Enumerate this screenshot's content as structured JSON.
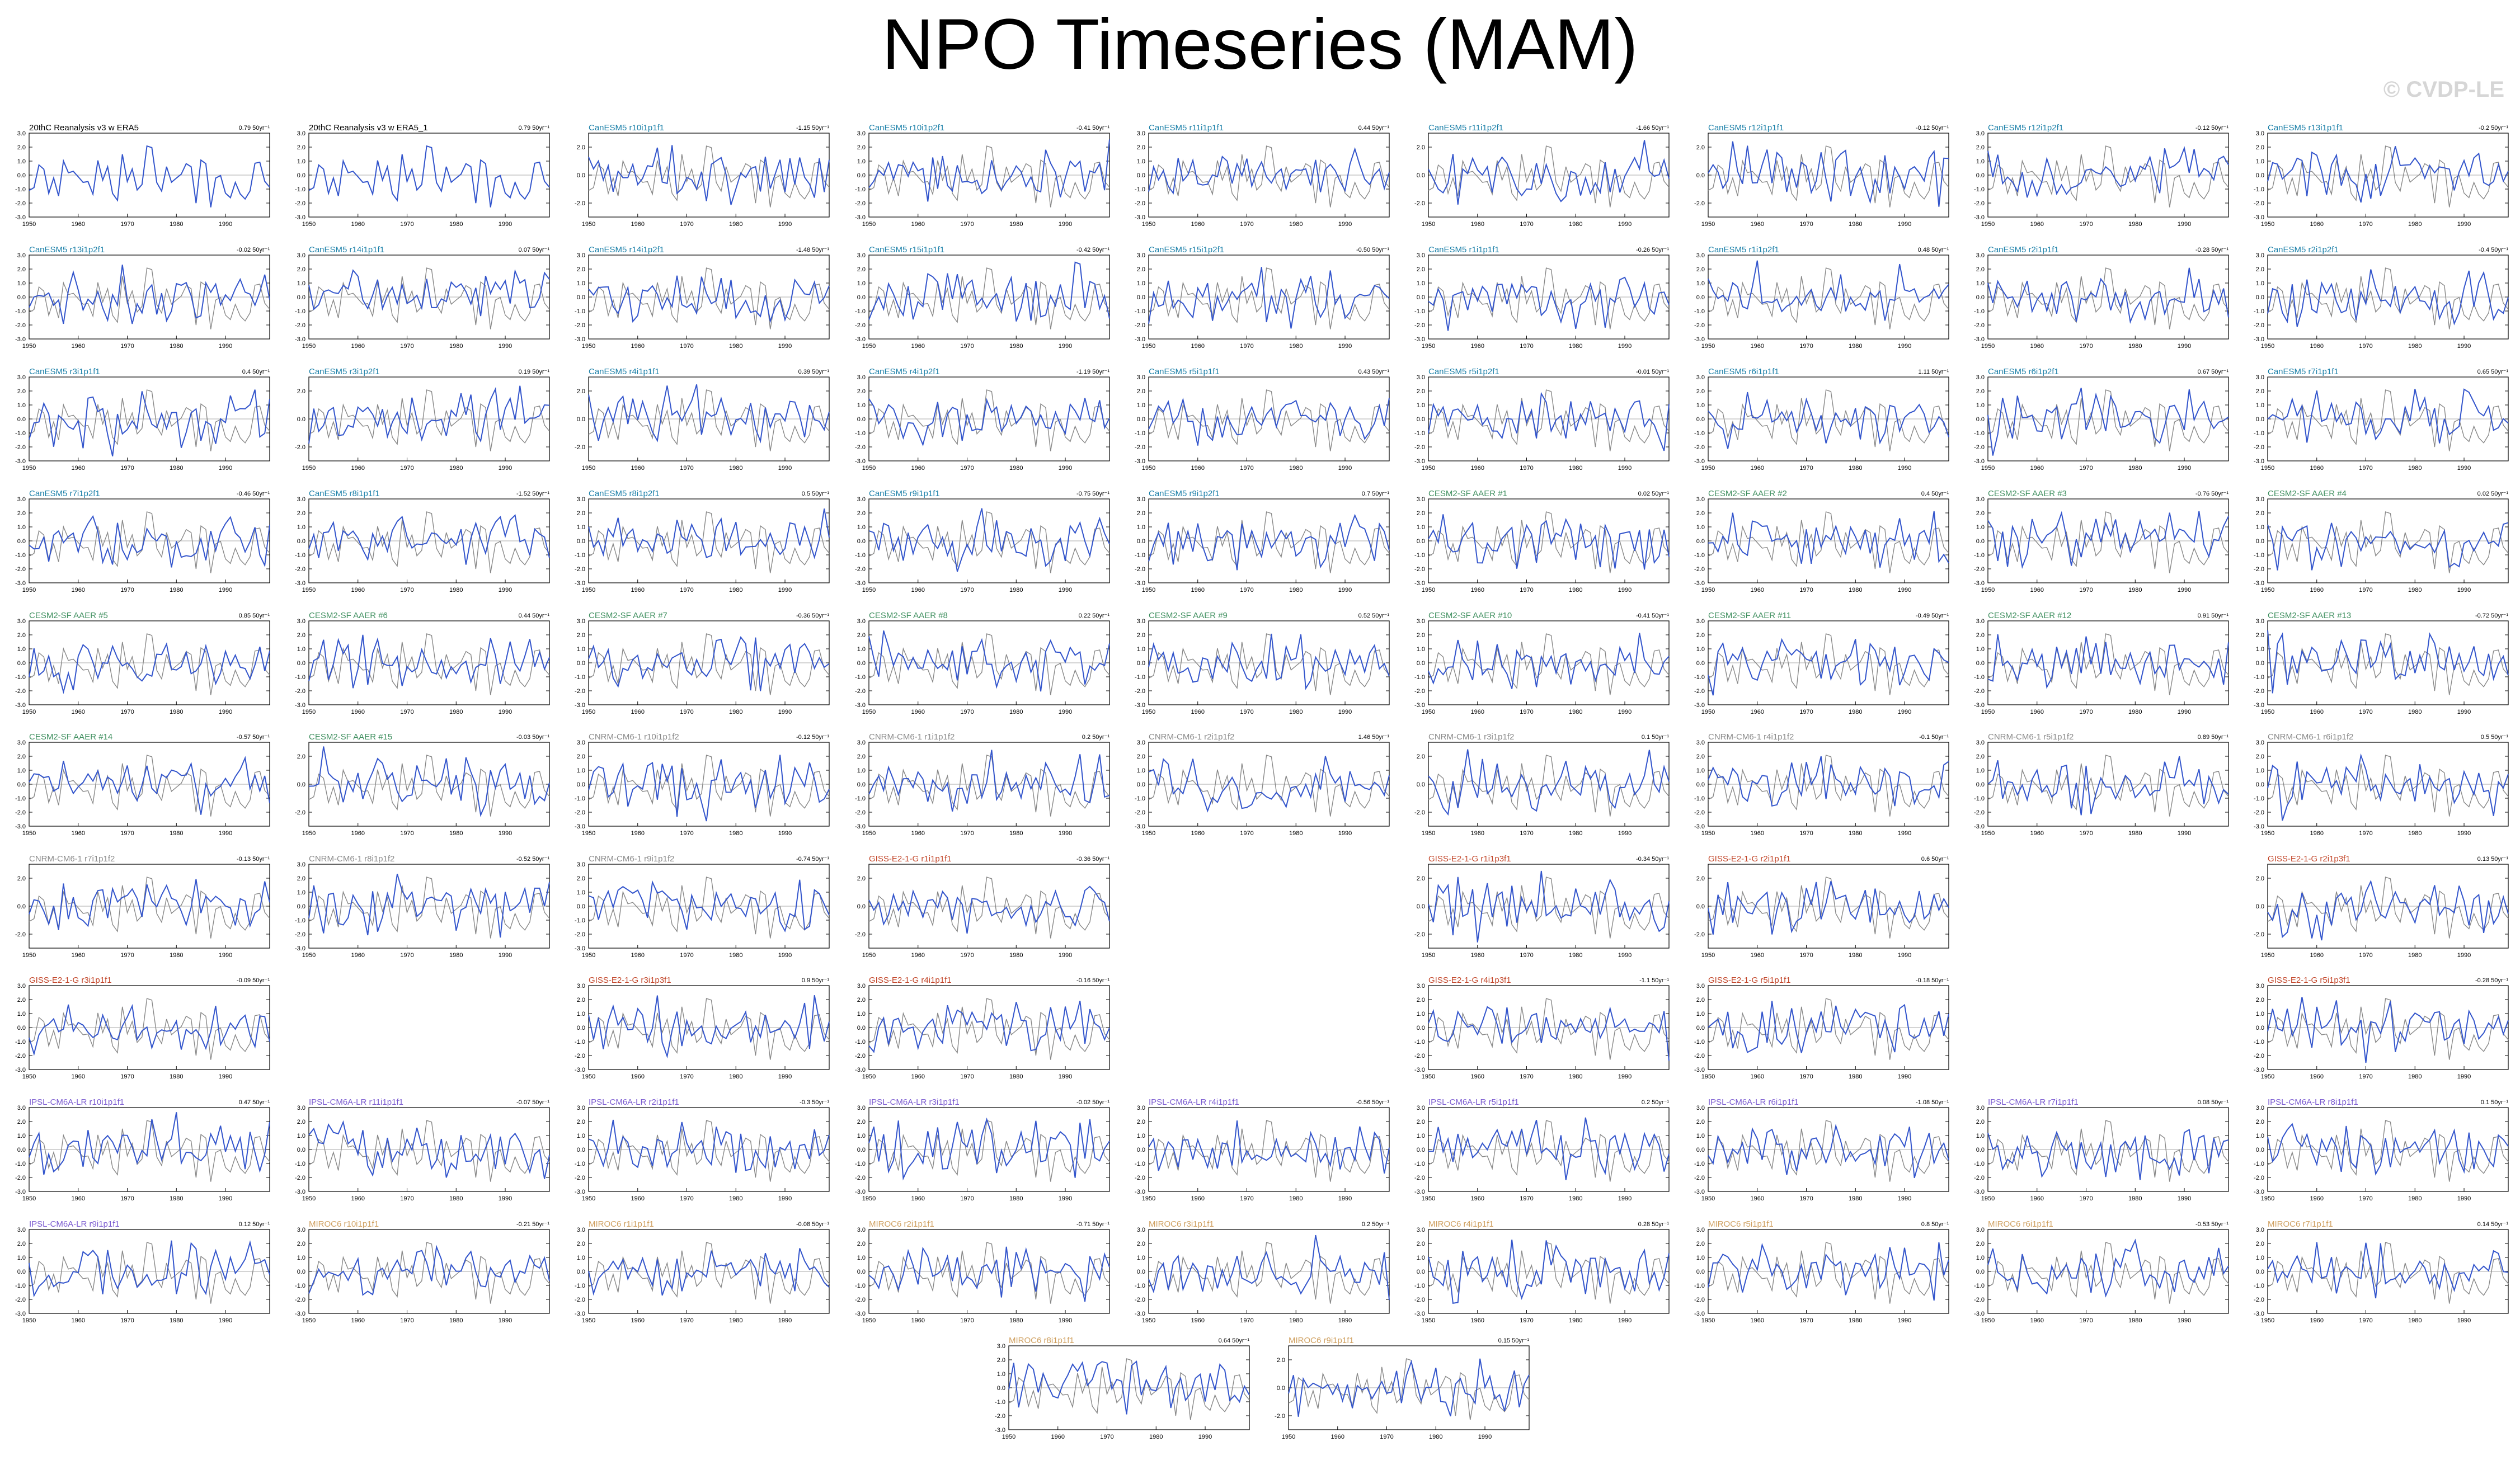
{
  "title": "NPO Timeseries (MAM)",
  "watermark": "© CVDP-LE",
  "colors": {
    "ensemble_line": "#3355cc",
    "observed_line": "#888888",
    "zero_line": "#aaaaaa",
    "obs_title": "#000000",
    "CanESM5": "#1a7fa8",
    "CESM2-SF AAER": "#3f8f5f",
    "CNRM-CM6-1": "#8a8a8a",
    "GISS-E2-1-G": "#c2462a",
    "IPSL-CM6A-LR": "#7a5ad0",
    "MIROC6": "#cfa060"
  },
  "chart_data": {
    "type": "line",
    "x_range": [
      1950,
      1999
    ],
    "x_ticks": [
      1950,
      1960,
      1970,
      1980,
      1990
    ],
    "ylim": [
      -3.0,
      3.0
    ],
    "y_ticks_full": [
      "3.0",
      "2.0",
      "1.0",
      "0.0",
      "-1.0",
      "-2.0",
      "-3.0"
    ],
    "y_ticks_short": [
      "2.0",
      "0.0",
      "-2.0"
    ],
    "grid": false,
    "panels": [
      {
        "row": 0,
        "col": 0,
        "title": "20thC Reanalysis v3 w ERA5",
        "stat": "0.79 50yr⁻¹",
        "group": "obs",
        "yt": "full",
        "seed": 101
      },
      {
        "row": 0,
        "col": 1,
        "title": "20thC Reanalysis v3 w ERA5_1",
        "stat": "0.79 50yr⁻¹",
        "group": "obs",
        "yt": "full",
        "seed": 102
      },
      {
        "row": 0,
        "col": 2,
        "title": "CanESM5 r10i1p1f1",
        "stat": "-1.15 50yr⁻¹",
        "group": "CanESM5",
        "yt": "short",
        "seed": 103
      },
      {
        "row": 0,
        "col": 3,
        "title": "CanESM5 r10i1p2f1",
        "stat": "-0.41 50yr⁻¹",
        "group": "CanESM5",
        "yt": "full",
        "seed": 104
      },
      {
        "row": 0,
        "col": 4,
        "title": "CanESM5 r11i1p1f1",
        "stat": "0.44 50yr⁻¹",
        "group": "CanESM5",
        "yt": "full",
        "seed": 105
      },
      {
        "row": 0,
        "col": 5,
        "title": "CanESM5 r11i1p2f1",
        "stat": "-1.66 50yr⁻¹",
        "group": "CanESM5",
        "yt": "short",
        "seed": 106
      },
      {
        "row": 0,
        "col": 6,
        "title": "CanESM5 r12i1p1f1",
        "stat": "-0.12 50yr⁻¹",
        "group": "CanESM5",
        "yt": "short",
        "seed": 107
      },
      {
        "row": 0,
        "col": 7,
        "title": "CanESM5 r12i1p2f1",
        "stat": "-0.12 50yr⁻¹",
        "group": "CanESM5",
        "yt": "full",
        "seed": 108
      },
      {
        "row": 0,
        "col": 8,
        "title": "CanESM5 r13i1p1f1",
        "stat": "-0.2 50yr⁻¹",
        "group": "CanESM5",
        "yt": "full",
        "seed": 109
      },
      {
        "row": 1,
        "col": 0,
        "title": "CanESM5 r13i1p2f1",
        "stat": "-0.02 50yr⁻¹",
        "group": "CanESM5",
        "yt": "full",
        "seed": 110
      },
      {
        "row": 1,
        "col": 1,
        "title": "CanESM5 r14i1p1f1",
        "stat": "0.07 50yr⁻¹",
        "group": "CanESM5",
        "yt": "full",
        "seed": 111
      },
      {
        "row": 1,
        "col": 2,
        "title": "CanESM5 r14i1p2f1",
        "stat": "-1.48 50yr⁻¹",
        "group": "CanESM5",
        "yt": "full",
        "seed": 112
      },
      {
        "row": 1,
        "col": 3,
        "title": "CanESM5 r15i1p1f1",
        "stat": "-0.42 50yr⁻¹",
        "group": "CanESM5",
        "yt": "full",
        "seed": 113
      },
      {
        "row": 1,
        "col": 4,
        "title": "CanESM5 r15i1p2f1",
        "stat": "-0.50 50yr⁻¹",
        "group": "CanESM5",
        "yt": "full",
        "seed": 114
      },
      {
        "row": 1,
        "col": 5,
        "title": "CanESM5 r1i1p1f1",
        "stat": "-0.26 50yr⁻¹",
        "group": "CanESM5",
        "yt": "full",
        "seed": 115
      },
      {
        "row": 1,
        "col": 6,
        "title": "CanESM5 r1i1p2f1",
        "stat": "0.48 50yr⁻¹",
        "group": "CanESM5",
        "yt": "full",
        "seed": 116
      },
      {
        "row": 1,
        "col": 7,
        "title": "CanESM5 r2i1p1f1",
        "stat": "-0.28 50yr⁻¹",
        "group": "CanESM5",
        "yt": "full",
        "seed": 117
      },
      {
        "row": 1,
        "col": 8,
        "title": "CanESM5 r2i1p2f1",
        "stat": "-0.4 50yr⁻¹",
        "group": "CanESM5",
        "yt": "full",
        "seed": 118
      },
      {
        "row": 2,
        "col": 0,
        "title": "CanESM5 r3i1p1f1",
        "stat": "0.4 50yr⁻¹",
        "group": "CanESM5",
        "yt": "full",
        "seed": 119
      },
      {
        "row": 2,
        "col": 1,
        "title": "CanESM5 r3i1p2f1",
        "stat": "0.19 50yr⁻¹",
        "group": "CanESM5",
        "yt": "short",
        "seed": 120
      },
      {
        "row": 2,
        "col": 2,
        "title": "CanESM5 r4i1p1f1",
        "stat": "0.39 50yr⁻¹",
        "group": "CanESM5",
        "yt": "short",
        "seed": 121
      },
      {
        "row": 2,
        "col": 3,
        "title": "CanESM5 r4i1p2f1",
        "stat": "-1.19 50yr⁻¹",
        "group": "CanESM5",
        "yt": "full",
        "seed": 122
      },
      {
        "row": 2,
        "col": 4,
        "title": "CanESM5 r5i1p1f1",
        "stat": "0.43 50yr⁻¹",
        "group": "CanESM5",
        "yt": "full",
        "seed": 123
      },
      {
        "row": 2,
        "col": 5,
        "title": "CanESM5 r5i1p2f1",
        "stat": "-0.01 50yr⁻¹",
        "group": "CanESM5",
        "yt": "full",
        "seed": 124
      },
      {
        "row": 2,
        "col": 6,
        "title": "CanESM5 r6i1p1f1",
        "stat": "1.11 50yr⁻¹",
        "group": "CanESM5",
        "yt": "full",
        "seed": 125
      },
      {
        "row": 2,
        "col": 7,
        "title": "CanESM5 r6i1p2f1",
        "stat": "0.67 50yr⁻¹",
        "group": "CanESM5",
        "yt": "full",
        "seed": 126
      },
      {
        "row": 2,
        "col": 8,
        "title": "CanESM5 r7i1p1f1",
        "stat": "0.65 50yr⁻¹",
        "group": "CanESM5",
        "yt": "full",
        "seed": 127
      },
      {
        "row": 3,
        "col": 0,
        "title": "CanESM5 r7i1p2f1",
        "stat": "-0.46 50yr⁻¹",
        "group": "CanESM5",
        "yt": "full",
        "seed": 128
      },
      {
        "row": 3,
        "col": 1,
        "title": "CanESM5 r8i1p1f1",
        "stat": "-1.52 50yr⁻¹",
        "group": "CanESM5",
        "yt": "full",
        "seed": 129
      },
      {
        "row": 3,
        "col": 2,
        "title": "CanESM5 r8i1p2f1",
        "stat": "0.5 50yr⁻¹",
        "group": "CanESM5",
        "yt": "full",
        "seed": 130
      },
      {
        "row": 3,
        "col": 3,
        "title": "CanESM5 r9i1p1f1",
        "stat": "-0.75 50yr⁻¹",
        "group": "CanESM5",
        "yt": "full",
        "seed": 131
      },
      {
        "row": 3,
        "col": 4,
        "title": "CanESM5 r9i1p2f1",
        "stat": "0.7 50yr⁻¹",
        "group": "CanESM5",
        "yt": "full",
        "seed": 132
      },
      {
        "row": 3,
        "col": 5,
        "title": "CESM2-SF AAER #1",
        "stat": "0.02 50yr⁻¹",
        "group": "CESM2-SF AAER",
        "yt": "full",
        "seed": 133
      },
      {
        "row": 3,
        "col": 6,
        "title": "CESM2-SF AAER #2",
        "stat": "0.4 50yr⁻¹",
        "group": "CESM2-SF AAER",
        "yt": "full",
        "seed": 134
      },
      {
        "row": 3,
        "col": 7,
        "title": "CESM2-SF AAER #3",
        "stat": "-0.76 50yr⁻¹",
        "group": "CESM2-SF AAER",
        "yt": "full",
        "seed": 135
      },
      {
        "row": 3,
        "col": 8,
        "title": "CESM2-SF AAER #4",
        "stat": "0.02 50yr⁻¹",
        "group": "CESM2-SF AAER",
        "yt": "full",
        "seed": 136
      },
      {
        "row": 4,
        "col": 0,
        "title": "CESM2-SF AAER #5",
        "stat": "0.85 50yr⁻¹",
        "group": "CESM2-SF AAER",
        "yt": "full",
        "seed": 137
      },
      {
        "row": 4,
        "col": 1,
        "title": "CESM2-SF AAER #6",
        "stat": "0.44 50yr⁻¹",
        "group": "CESM2-SF AAER",
        "yt": "full",
        "seed": 138
      },
      {
        "row": 4,
        "col": 2,
        "title": "CESM2-SF AAER #7",
        "stat": "-0.36 50yr⁻¹",
        "group": "CESM2-SF AAER",
        "yt": "full",
        "seed": 139
      },
      {
        "row": 4,
        "col": 3,
        "title": "CESM2-SF AAER #8",
        "stat": "0.22 50yr⁻¹",
        "group": "CESM2-SF AAER",
        "yt": "full",
        "seed": 140
      },
      {
        "row": 4,
        "col": 4,
        "title": "CESM2-SF AAER #9",
        "stat": "0.52 50yr⁻¹",
        "group": "CESM2-SF AAER",
        "yt": "full",
        "seed": 141
      },
      {
        "row": 4,
        "col": 5,
        "title": "CESM2-SF AAER #10",
        "stat": "-0.41 50yr⁻¹",
        "group": "CESM2-SF AAER",
        "yt": "full",
        "seed": 142
      },
      {
        "row": 4,
        "col": 6,
        "title": "CESM2-SF AAER #11",
        "stat": "-0.49 50yr⁻¹",
        "group": "CESM2-SF AAER",
        "yt": "full",
        "seed": 143
      },
      {
        "row": 4,
        "col": 7,
        "title": "CESM2-SF AAER #12",
        "stat": "0.91 50yr⁻¹",
        "group": "CESM2-SF AAER",
        "yt": "full",
        "seed": 144
      },
      {
        "row": 4,
        "col": 8,
        "title": "CESM2-SF AAER #13",
        "stat": "-0.72 50yr⁻¹",
        "group": "CESM2-SF AAER",
        "yt": "full",
        "seed": 145
      },
      {
        "row": 5,
        "col": 0,
        "title": "CESM2-SF AAER #14",
        "stat": "-0.57 50yr⁻¹",
        "group": "CESM2-SF AAER",
        "yt": "full",
        "seed": 146
      },
      {
        "row": 5,
        "col": 1,
        "title": "CESM2-SF AAER #15",
        "stat": "-0.03 50yr⁻¹",
        "group": "CESM2-SF AAER",
        "yt": "short",
        "seed": 147
      },
      {
        "row": 5,
        "col": 2,
        "title": "CNRM-CM6-1 r10i1p1f2",
        "stat": "-0.12 50yr⁻¹",
        "group": "CNRM-CM6-1",
        "yt": "full",
        "seed": 148
      },
      {
        "row": 5,
        "col": 3,
        "title": "CNRM-CM6-1 r1i1p1f2",
        "stat": "0.2 50yr⁻¹",
        "group": "CNRM-CM6-1",
        "yt": "full",
        "seed": 149
      },
      {
        "row": 5,
        "col": 4,
        "title": "CNRM-CM6-1 r2i1p1f2",
        "stat": "1.46 50yr⁻¹",
        "group": "CNRM-CM6-1",
        "yt": "full",
        "seed": 150
      },
      {
        "row": 5,
        "col": 5,
        "title": "CNRM-CM6-1 r3i1p1f2",
        "stat": "0.1 50yr⁻¹",
        "group": "CNRM-CM6-1",
        "yt": "short",
        "seed": 151
      },
      {
        "row": 5,
        "col": 6,
        "title": "CNRM-CM6-1 r4i1p1f2",
        "stat": "-0.1 50yr⁻¹",
        "group": "CNRM-CM6-1",
        "yt": "full",
        "seed": 152
      },
      {
        "row": 5,
        "col": 7,
        "title": "CNRM-CM6-1 r5i1p1f2",
        "stat": "0.89 50yr⁻¹",
        "group": "CNRM-CM6-1",
        "yt": "full",
        "seed": 153
      },
      {
        "row": 5,
        "col": 8,
        "title": "CNRM-CM6-1 r6i1p1f2",
        "stat": "0.5 50yr⁻¹",
        "group": "CNRM-CM6-1",
        "yt": "full",
        "seed": 154
      },
      {
        "row": 6,
        "col": 0,
        "title": "CNRM-CM6-1 r7i1p1f2",
        "stat": "-0.13 50yr⁻¹",
        "group": "CNRM-CM6-1",
        "yt": "short",
        "seed": 155
      },
      {
        "row": 6,
        "col": 1,
        "title": "CNRM-CM6-1 r8i1p1f2",
        "stat": "-0.52 50yr⁻¹",
        "group": "CNRM-CM6-1",
        "yt": "full",
        "seed": 156
      },
      {
        "row": 6,
        "col": 2,
        "title": "CNRM-CM6-1 r9i1p1f2",
        "stat": "-0.74 50yr⁻¹",
        "group": "CNRM-CM6-1",
        "yt": "full",
        "seed": 157
      },
      {
        "row": 6,
        "col": 3,
        "title": "GISS-E2-1-G r1i1p1f1",
        "stat": "-0.36 50yr⁻¹",
        "group": "GISS-E2-1-G",
        "yt": "short",
        "seed": 158
      },
      {
        "row": 6,
        "col": 5,
        "title": "GISS-E2-1-G r1i1p3f1",
        "stat": "-0.34 50yr⁻¹",
        "group": "GISS-E2-1-G",
        "yt": "short",
        "seed": 159
      },
      {
        "row": 6,
        "col": 6,
        "title": "GISS-E2-1-G r2i1p1f1",
        "stat": "0.6 50yr⁻¹",
        "group": "GISS-E2-1-G",
        "yt": "short",
        "seed": 160
      },
      {
        "row": 6,
        "col": 8,
        "title": "GISS-E2-1-G r2i1p3f1",
        "stat": "0.13 50yr⁻¹",
        "group": "GISS-E2-1-G",
        "yt": "short",
        "seed": 161
      },
      {
        "row": 7,
        "col": 0,
        "title": "GISS-E2-1-G r3i1p1f1",
        "stat": "-0.09 50yr⁻¹",
        "group": "GISS-E2-1-G",
        "yt": "full",
        "seed": 162
      },
      {
        "row": 7,
        "col": 2,
        "title": "GISS-E2-1-G r3i1p3f1",
        "stat": "0.9 50yr⁻¹",
        "group": "GISS-E2-1-G",
        "yt": "full",
        "seed": 163
      },
      {
        "row": 7,
        "col": 3,
        "title": "GISS-E2-1-G r4i1p1f1",
        "stat": "-0.16 50yr⁻¹",
        "group": "GISS-E2-1-G",
        "yt": "full",
        "seed": 164
      },
      {
        "row": 7,
        "col": 5,
        "title": "GISS-E2-1-G r4i1p3f1",
        "stat": "-1.1 50yr⁻¹",
        "group": "GISS-E2-1-G",
        "yt": "full",
        "seed": 165
      },
      {
        "row": 7,
        "col": 6,
        "title": "GISS-E2-1-G r5i1p1f1",
        "stat": "-0.18 50yr⁻¹",
        "group": "GISS-E2-1-G",
        "yt": "full",
        "seed": 166
      },
      {
        "row": 7,
        "col": 8,
        "title": "GISS-E2-1-G r5i1p3f1",
        "stat": "-0.28 50yr⁻¹",
        "group": "GISS-E2-1-G",
        "yt": "full",
        "seed": 167
      },
      {
        "row": 8,
        "col": 0,
        "title": "IPSL-CM6A-LR r10i1p1f1",
        "stat": "0.47 50yr⁻¹",
        "group": "IPSL-CM6A-LR",
        "yt": "full",
        "seed": 168
      },
      {
        "row": 8,
        "col": 1,
        "title": "IPSL-CM6A-LR r11i1p1f1",
        "stat": "-0.07 50yr⁻¹",
        "group": "IPSL-CM6A-LR",
        "yt": "full",
        "seed": 169
      },
      {
        "row": 8,
        "col": 2,
        "title": "IPSL-CM6A-LR r2i1p1f1",
        "stat": "-0.3 50yr⁻¹",
        "group": "IPSL-CM6A-LR",
        "yt": "full",
        "seed": 170
      },
      {
        "row": 8,
        "col": 3,
        "title": "IPSL-CM6A-LR r3i1p1f1",
        "stat": "-0.02 50yr⁻¹",
        "group": "IPSL-CM6A-LR",
        "yt": "full",
        "seed": 171
      },
      {
        "row": 8,
        "col": 4,
        "title": "IPSL-CM6A-LR r4i1p1f1",
        "stat": "-0.56 50yr⁻¹",
        "group": "IPSL-CM6A-LR",
        "yt": "full",
        "seed": 172
      },
      {
        "row": 8,
        "col": 5,
        "title": "IPSL-CM6A-LR r5i1p1f1",
        "stat": "0.2 50yr⁻¹",
        "group": "IPSL-CM6A-LR",
        "yt": "full",
        "seed": 173
      },
      {
        "row": 8,
        "col": 6,
        "title": "IPSL-CM6A-LR r6i1p1f1",
        "stat": "-1.08 50yr⁻¹",
        "group": "IPSL-CM6A-LR",
        "yt": "full",
        "seed": 174
      },
      {
        "row": 8,
        "col": 7,
        "title": "IPSL-CM6A-LR r7i1p1f1",
        "stat": "0.08 50yr⁻¹",
        "group": "IPSL-CM6A-LR",
        "yt": "full",
        "seed": 175
      },
      {
        "row": 8,
        "col": 8,
        "title": "IPSL-CM6A-LR r8i1p1f1",
        "stat": "0.1 50yr⁻¹",
        "group": "IPSL-CM6A-LR",
        "yt": "full",
        "seed": 176
      },
      {
        "row": 9,
        "col": 0,
        "title": "IPSL-CM6A-LR r9i1p1f1",
        "stat": "0.12 50yr⁻¹",
        "group": "IPSL-CM6A-LR",
        "yt": "full",
        "seed": 177
      },
      {
        "row": 9,
        "col": 1,
        "title": "MIROC6 r10i1p1f1",
        "stat": "-0.21 50yr⁻¹",
        "group": "MIROC6",
        "yt": "full",
        "seed": 178
      },
      {
        "row": 9,
        "col": 2,
        "title": "MIROC6 r1i1p1f1",
        "stat": "-0.08 50yr⁻¹",
        "group": "MIROC6",
        "yt": "full",
        "seed": 179
      },
      {
        "row": 9,
        "col": 3,
        "title": "MIROC6 r2i1p1f1",
        "stat": "-0.71 50yr⁻¹",
        "group": "MIROC6",
        "yt": "full",
        "seed": 180
      },
      {
        "row": 9,
        "col": 4,
        "title": "MIROC6 r3i1p1f1",
        "stat": "0.2 50yr⁻¹",
        "group": "MIROC6",
        "yt": "full",
        "seed": 181
      },
      {
        "row": 9,
        "col": 5,
        "title": "MIROC6 r4i1p1f1",
        "stat": "0.28 50yr⁻¹",
        "group": "MIROC6",
        "yt": "full",
        "seed": 182
      },
      {
        "row": 9,
        "col": 6,
        "title": "MIROC6 r5i1p1f1",
        "stat": "0.8 50yr⁻¹",
        "group": "MIROC6",
        "yt": "full",
        "seed": 183
      },
      {
        "row": 9,
        "col": 7,
        "title": "MIROC6 r6i1p1f1",
        "stat": "-0.53 50yr⁻¹",
        "group": "MIROC6",
        "yt": "full",
        "seed": 184
      },
      {
        "row": 9,
        "col": 8,
        "title": "MIROC6 r7i1p1f1",
        "stat": "0.14 50yr⁻¹",
        "group": "MIROC6",
        "yt": "full",
        "seed": 185
      },
      {
        "row": 10,
        "col": "b0",
        "title": "MIROC6 r8i1p1f1",
        "stat": "0.64 50yr⁻¹",
        "group": "MIROC6",
        "yt": "full",
        "seed": 186
      },
      {
        "row": 10,
        "col": "b1",
        "title": "MIROC6 r9i1p1f1",
        "stat": "0.15 50yr⁻¹",
        "group": "MIROC6",
        "yt": "short",
        "seed": 187
      }
    ]
  }
}
